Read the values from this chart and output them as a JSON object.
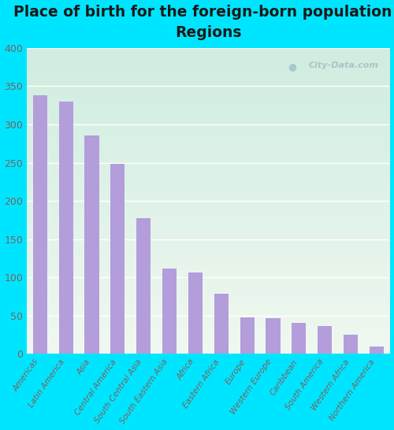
{
  "title": "Place of birth for the foreign-born population -\nRegions",
  "categories": [
    "Americas",
    "Latin America",
    "Asia",
    "Central America",
    "South Central Asia",
    "South Eastern Asia",
    "Africa",
    "Eastern Africa",
    "Europe",
    "Western Europe",
    "Caribbean",
    "South America",
    "Western Africa",
    "Northern America"
  ],
  "values": [
    338,
    330,
    286,
    249,
    177,
    112,
    106,
    79,
    48,
    47,
    41,
    36,
    25,
    10
  ],
  "bar_color": "#b39ddb",
  "background_outer": "#00e5ff",
  "background_inner_top": "#d0ede0",
  "background_inner_bottom": "#f0f8f0",
  "grid_color": "#ffffff",
  "title_color": "#1a1a1a",
  "tick_label_color": "#7a6060",
  "watermark_text": "City-Data.com",
  "ylim": [
    0,
    400
  ],
  "title_fontsize": 13.5,
  "tick_fontsize": 7.5,
  "ytick_fontsize": 9
}
